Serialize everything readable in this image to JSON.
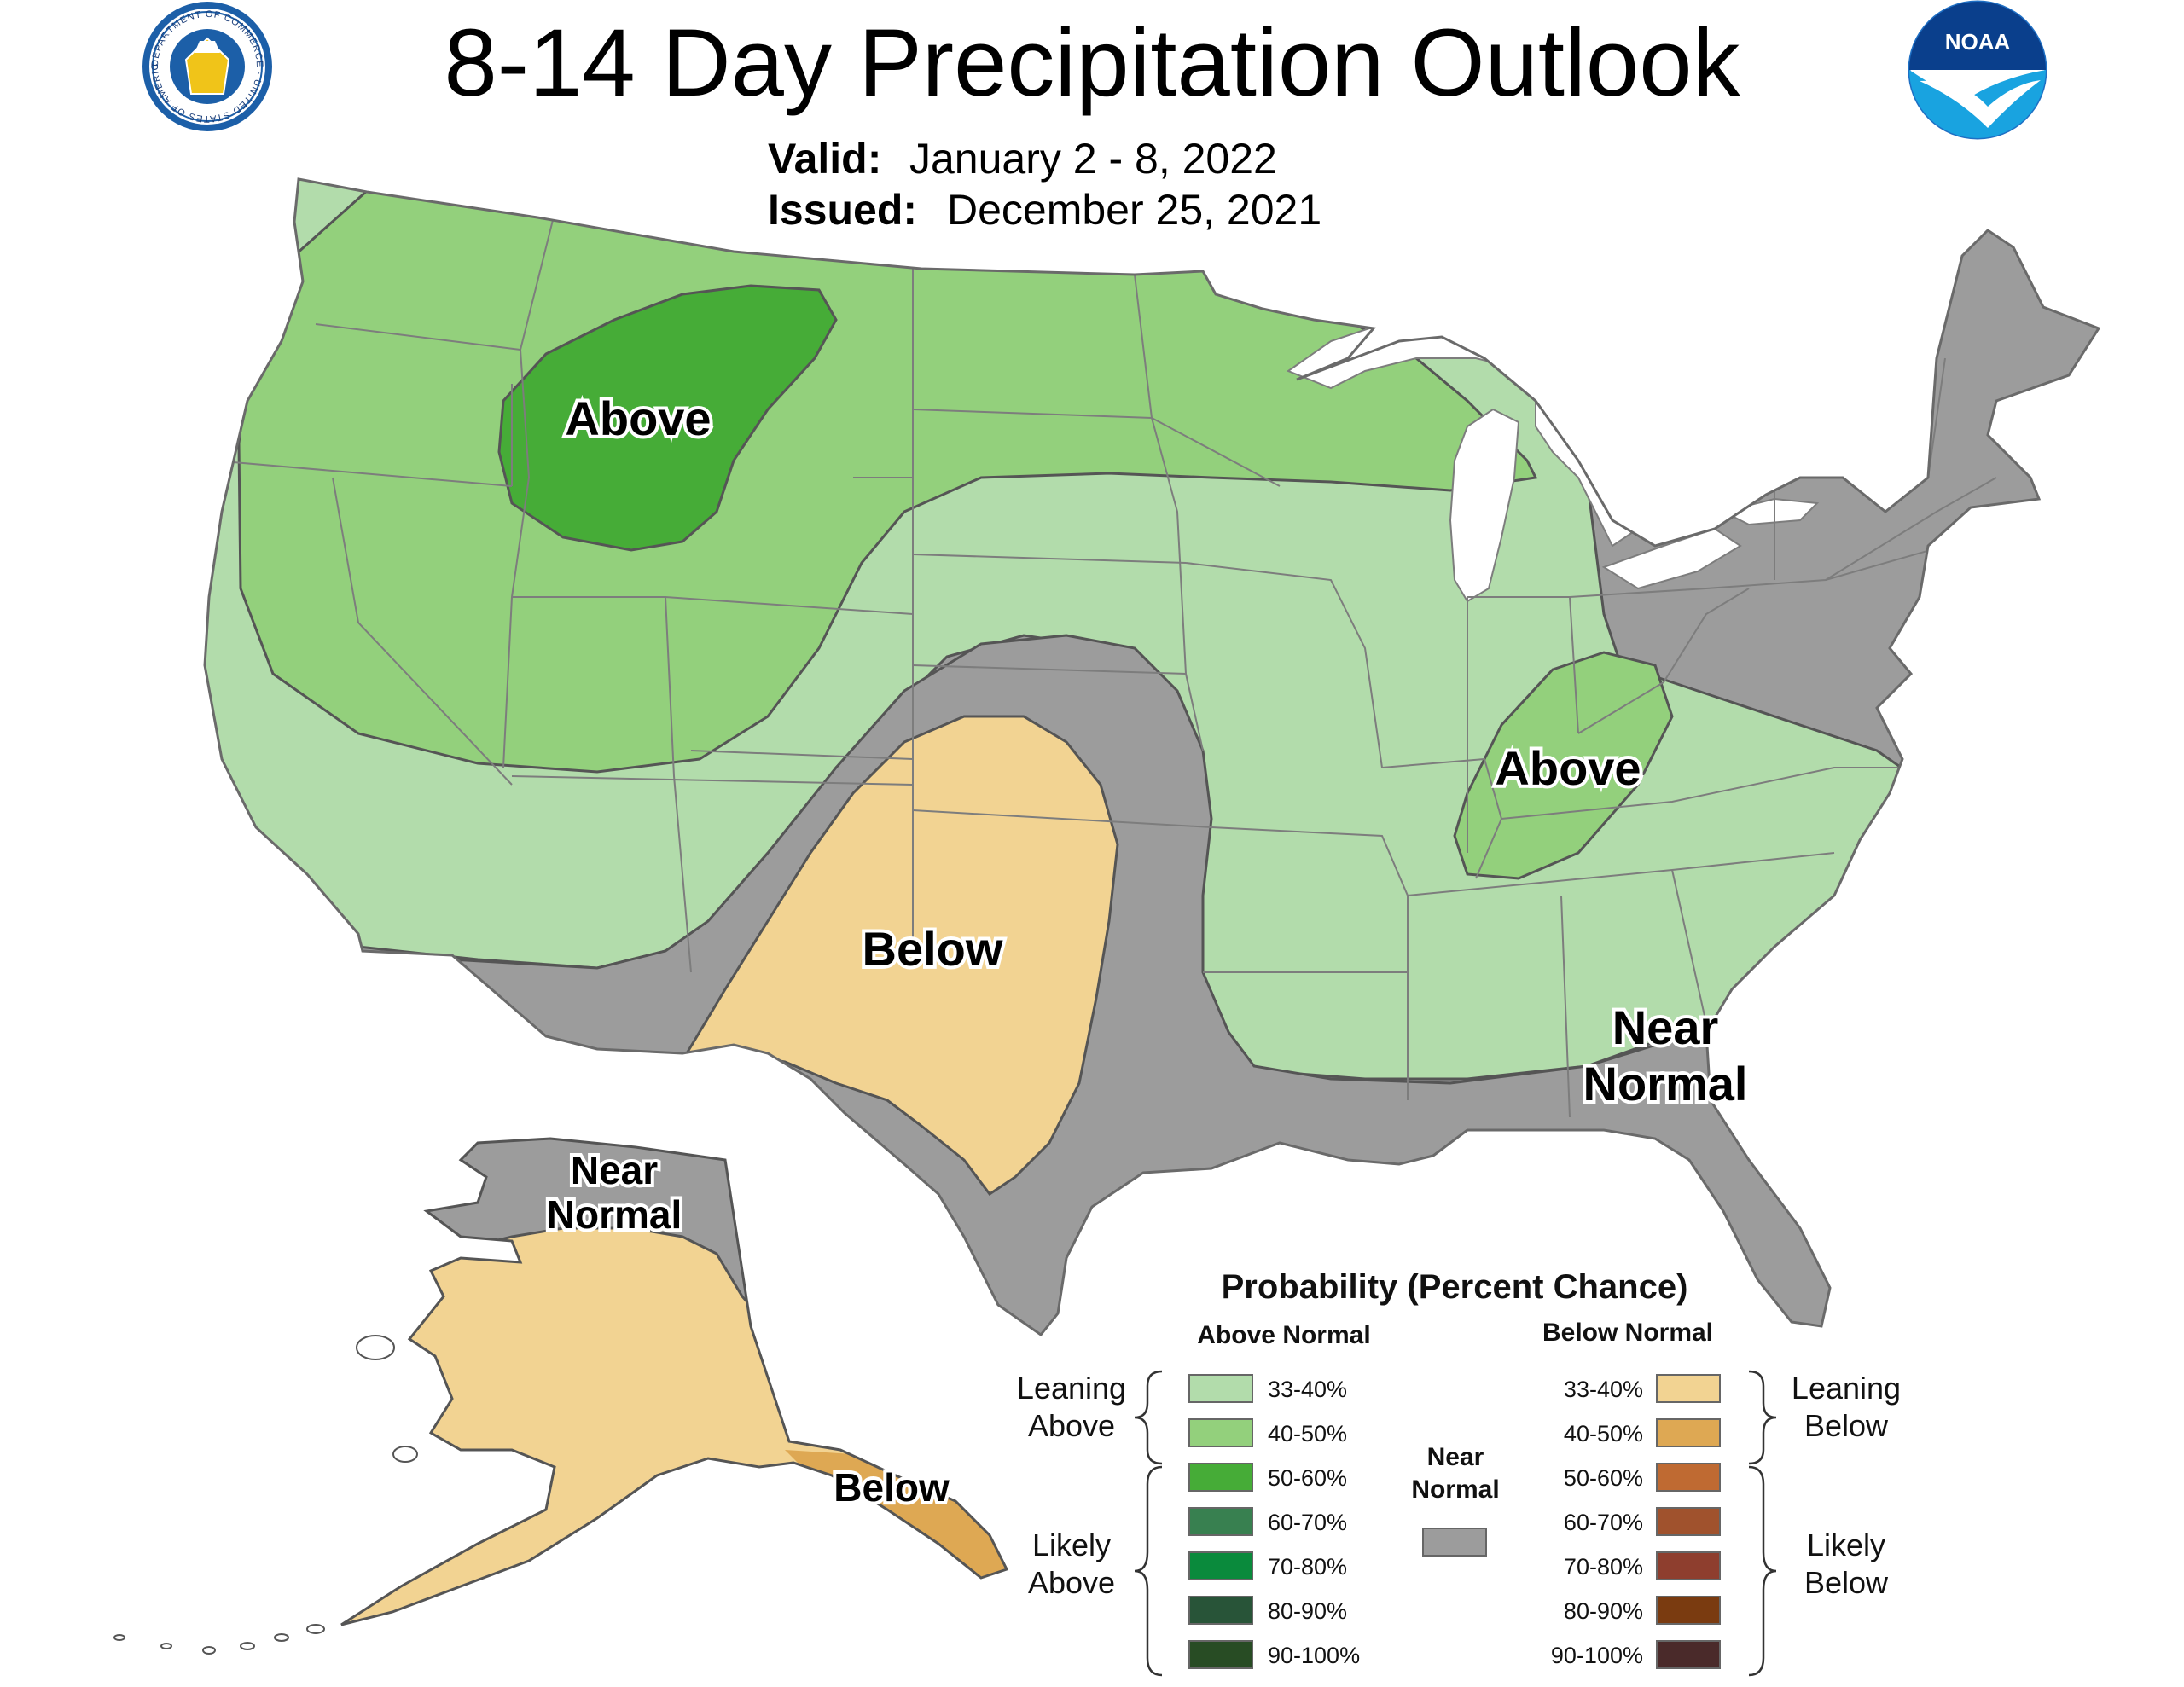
{
  "header": {
    "title": "8-14 Day Precipitation Outlook",
    "valid_label": "Valid:",
    "valid_value": "January 2 - 8, 2022",
    "issued_label": "Issued:",
    "issued_value": "December 25, 2021"
  },
  "logos": {
    "commerce_seal_text": "DEPARTMENT OF COMMERCE · UNITED STATES OF AMERICA",
    "noaa_text": "NOAA"
  },
  "map_labels": {
    "above_northwest": "Above",
    "above_ohio_valley": "Above",
    "below_southern_plains": "Below",
    "near_normal_southeast_line1": "Near",
    "near_normal_southeast_line2": "Normal",
    "alaska_near_normal_line1": "Near",
    "alaska_near_normal_line2": "Normal",
    "alaska_below": "Below"
  },
  "colors": {
    "above_33_40": "#b2dcab",
    "above_40_50": "#93d07c",
    "above_50_60": "#46ac37",
    "above_60_70": "#388050",
    "above_70_80": "#0a8a3c",
    "above_80_90": "#285438",
    "above_90_100": "#284c24",
    "below_33_40": "#f2d392",
    "below_40_50": "#dea853",
    "below_50_60": "#bf6a32",
    "below_60_70": "#a0522d",
    "below_70_80": "#8e3e2e",
    "below_80_90": "#7a3b10",
    "below_90_100": "#4a2a2a",
    "near_normal": "#9c9c9c",
    "water": "#ffffff"
  },
  "legend": {
    "title": "Probability (Percent Chance)",
    "above_header": "Above Normal",
    "below_header": "Below Normal",
    "near_line1": "Near",
    "near_line2": "Normal",
    "leaning_above_line1": "Leaning",
    "leaning_above_line2": "Above",
    "likely_above_line1": "Likely",
    "likely_above_line2": "Above",
    "leaning_below_line1": "Leaning",
    "leaning_below_line2": "Below",
    "likely_below_line1": "Likely",
    "likely_below_line2": "Below",
    "above_items": [
      {
        "label": "33-40%",
        "color": "#b2dcab"
      },
      {
        "label": "40-50%",
        "color": "#93d07c"
      },
      {
        "label": "50-60%",
        "color": "#46ac37"
      },
      {
        "label": "60-70%",
        "color": "#388050"
      },
      {
        "label": "70-80%",
        "color": "#0a8a3c"
      },
      {
        "label": "80-90%",
        "color": "#285438"
      },
      {
        "label": "90-100%",
        "color": "#284c24"
      }
    ],
    "below_items": [
      {
        "label": "33-40%",
        "color": "#f2d392"
      },
      {
        "label": "40-50%",
        "color": "#dea853"
      },
      {
        "label": "50-60%",
        "color": "#bf6a32"
      },
      {
        "label": "60-70%",
        "color": "#a0522d"
      },
      {
        "label": "70-80%",
        "color": "#8e3e2e"
      },
      {
        "label": "80-90%",
        "color": "#7a3b10"
      },
      {
        "label": "90-100%",
        "color": "#4a2a2a"
      }
    ]
  }
}
